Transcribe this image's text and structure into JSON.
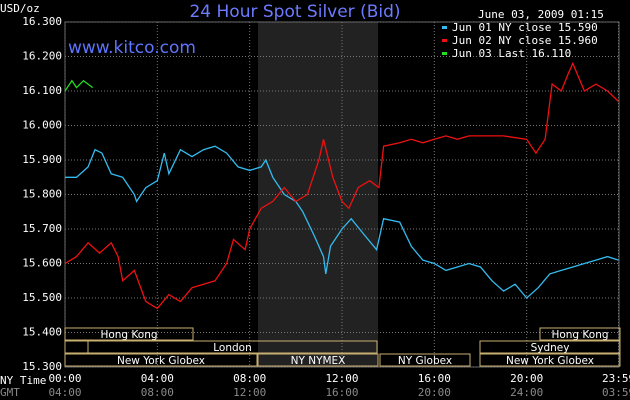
{
  "chart_data": {
    "type": "line",
    "title": "24 Hour Spot Silver (Bid)",
    "y_label": "USD/oz",
    "timestamp": "June 03, 2009 01:15",
    "website": "www.kitco.com",
    "x_label": "NY Time",
    "x2_label": "GMT",
    "xlim": [
      0,
      24
    ],
    "ylim": [
      15.3,
      16.3
    ],
    "grid": true,
    "yticks": [
      {
        "value": 15.3,
        "label": "15.300"
      },
      {
        "value": 15.4,
        "label": "15.400"
      },
      {
        "value": 15.5,
        "label": "15.500"
      },
      {
        "value": 15.6,
        "label": "15.600"
      },
      {
        "value": 15.7,
        "label": "15.700"
      },
      {
        "value": 15.8,
        "label": "15.800"
      },
      {
        "value": 15.9,
        "label": "15.900"
      },
      {
        "value": 16.0,
        "label": "16.000"
      },
      {
        "value": 16.1,
        "label": "16.100"
      },
      {
        "value": 16.2,
        "label": "16.200"
      },
      {
        "value": 16.3,
        "label": "16.300"
      }
    ],
    "xticks": [
      {
        "value": 0,
        "label": "00:00"
      },
      {
        "value": 4,
        "label": "04:00"
      },
      {
        "value": 8,
        "label": "08:00"
      },
      {
        "value": 12,
        "label": "12:00"
      },
      {
        "value": 16,
        "label": "16:00"
      },
      {
        "value": 20,
        "label": "20:00"
      },
      {
        "value": 23.98,
        "label": "23:59"
      }
    ],
    "gmt_ticks": [
      "04:00",
      "08:00",
      "12:00",
      "16:00",
      "20:00",
      "24:00",
      "03:59"
    ],
    "sessions": [
      "Hong Kong",
      "London",
      "New York Globex",
      "NY NYMEX",
      "NY Globex",
      "Hong Kong",
      "Sydney",
      "New York Globex"
    ],
    "series": [
      {
        "name": "Jun 01 NY close 15.590",
        "color": "#33bbee",
        "x": [
          0,
          0.5,
          1,
          1.3,
          1.6,
          2,
          2.5,
          3,
          3.1,
          3.5,
          4,
          4.3,
          4.5,
          5,
          5.5,
          6,
          6.5,
          7,
          7.5,
          8,
          8.5,
          8.7,
          9,
          9.5,
          10,
          10.3,
          10.8,
          11.2,
          11.3,
          11.5,
          12,
          12.4,
          13,
          13.5,
          13.8,
          14.5,
          15,
          15.5,
          16,
          16.5,
          17,
          17.5,
          18,
          18.5,
          19,
          19.5,
          20,
          20.5,
          21,
          21.5,
          22,
          22.5,
          23,
          23.5,
          23.98
        ],
        "values": [
          15.85,
          15.85,
          15.88,
          15.93,
          15.92,
          15.86,
          15.85,
          15.8,
          15.78,
          15.82,
          15.84,
          15.92,
          15.86,
          15.93,
          15.91,
          15.93,
          15.94,
          15.92,
          15.88,
          15.87,
          15.88,
          15.9,
          15.85,
          15.8,
          15.78,
          15.75,
          15.68,
          15.62,
          15.57,
          15.65,
          15.7,
          15.73,
          15.68,
          15.64,
          15.73,
          15.72,
          15.65,
          15.61,
          15.6,
          15.58,
          15.59,
          15.6,
          15.59,
          15.55,
          15.52,
          15.54,
          15.5,
          15.53,
          15.57,
          15.58,
          15.59,
          15.6,
          15.61,
          15.62,
          15.61
        ]
      },
      {
        "name": "Jun 02 NY close 15.960",
        "color": "#ee1111",
        "x": [
          0,
          0.5,
          1,
          1.5,
          2,
          2.3,
          2.5,
          3,
          3.5,
          4,
          4.5,
          5,
          5.5,
          6,
          6.5,
          7,
          7.3,
          7.8,
          8,
          8.5,
          9,
          9.5,
          10,
          10.5,
          11,
          11.2,
          11.6,
          12,
          12.3,
          12.7,
          13.2,
          13.6,
          13.8,
          14.5,
          15,
          15.5,
          16,
          16.5,
          17,
          17.5,
          18,
          19,
          20,
          20.4,
          20.8,
          21.1,
          21.5,
          21.8,
          22,
          22.5,
          23,
          23.5,
          23.98
        ],
        "values": [
          15.6,
          15.62,
          15.66,
          15.63,
          15.66,
          15.62,
          15.55,
          15.58,
          15.49,
          15.47,
          15.51,
          15.49,
          15.53,
          15.54,
          15.55,
          15.6,
          15.67,
          15.64,
          15.7,
          15.76,
          15.78,
          15.82,
          15.78,
          15.8,
          15.9,
          15.96,
          15.85,
          15.78,
          15.76,
          15.82,
          15.84,
          15.82,
          15.94,
          15.95,
          15.96,
          15.95,
          15.96,
          15.97,
          15.96,
          15.97,
          15.97,
          15.97,
          15.96,
          15.92,
          15.96,
          16.12,
          16.1,
          16.15,
          16.18,
          16.1,
          16.12,
          16.1,
          16.07
        ]
      },
      {
        "name": "Jun 03 Last 16.110",
        "color": "#22dd22",
        "x": [
          0,
          0.3,
          0.5,
          0.8,
          1.2
        ],
        "values": [
          16.1,
          16.13,
          16.11,
          16.13,
          16.11
        ]
      }
    ]
  }
}
